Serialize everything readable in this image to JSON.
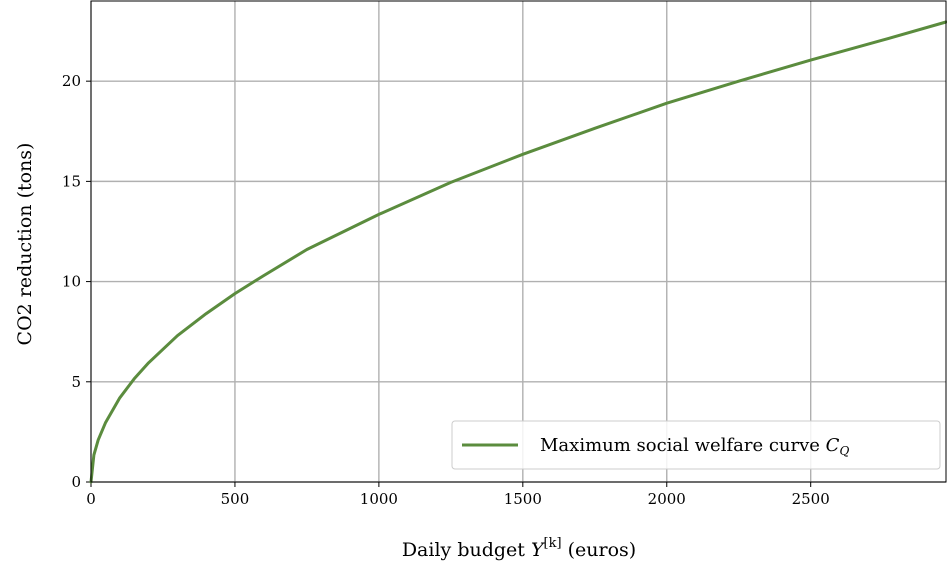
{
  "chart_data": {
    "type": "line",
    "title": "",
    "xlabel": "Daily budget Y^[k] (euros)",
    "xlabel_parts": {
      "pre": "Daily budget ",
      "var": "Y",
      "sup": "[k]",
      "post": " (euros)"
    },
    "ylabel": "CO2 reduction (tons)",
    "xlim": [
      0,
      2970
    ],
    "ylim": [
      0,
      24
    ],
    "xticks": [
      0,
      500,
      1000,
      1500,
      2000,
      2500
    ],
    "yticks": [
      0,
      5,
      10,
      15,
      20
    ],
    "grid": true,
    "legend_position": "lower-right",
    "series": [
      {
        "name": "Maximum social welfare curve C_Q",
        "name_parts": {
          "pre": "Maximum social welfare curve ",
          "var": "C",
          "sub": "Q"
        },
        "color": "#5b8c3e",
        "x": [
          0,
          10,
          25,
          50,
          100,
          150,
          200,
          300,
          400,
          500,
          600,
          750,
          1000,
          1250,
          1500,
          1750,
          2000,
          2250,
          2500,
          2750,
          2970
        ],
        "y": [
          0,
          1.35,
          2.1,
          2.95,
          4.2,
          5.15,
          5.95,
          7.3,
          8.4,
          9.4,
          10.3,
          11.6,
          13.35,
          14.95,
          16.35,
          17.65,
          18.9,
          20.0,
          21.05,
          22.05,
          22.95
        ]
      }
    ]
  }
}
